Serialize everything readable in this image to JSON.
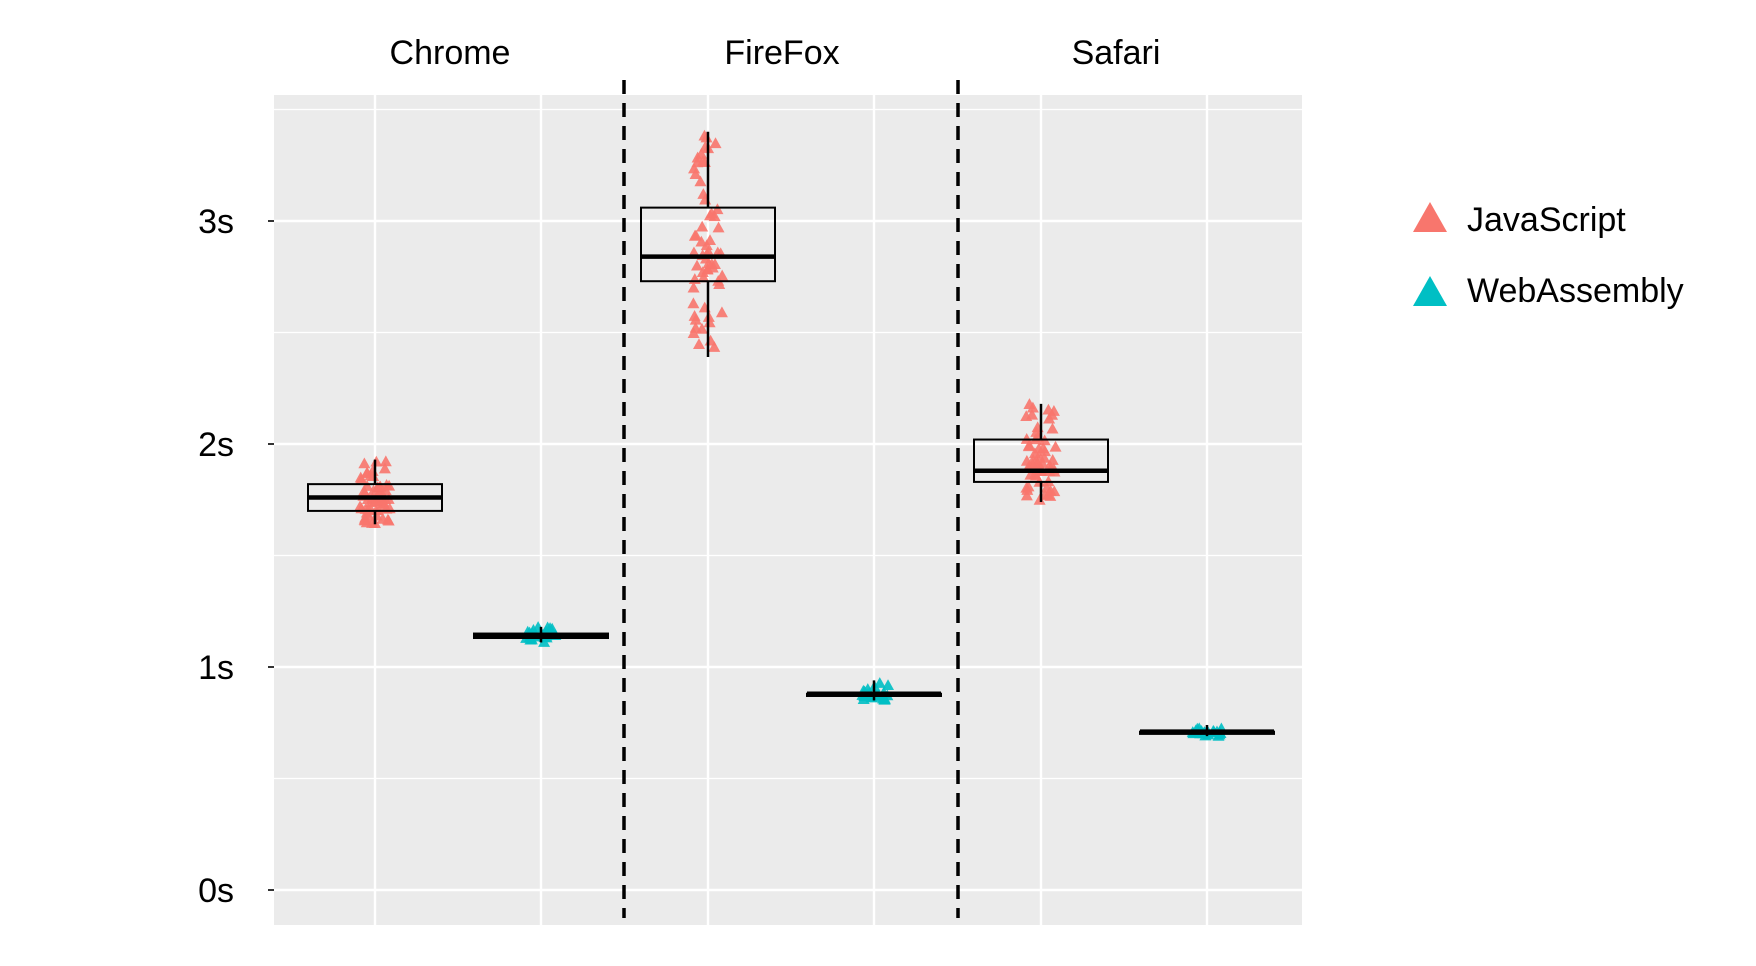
{
  "chart_data": {
    "type": "box",
    "panels": [
      {
        "label": "Chrome"
      },
      {
        "label": "FireFox"
      },
      {
        "label": "Safari"
      }
    ],
    "ylim": [
      0,
      3.5
    ],
    "y_ticks": [
      {
        "value": 0,
        "label": "0s"
      },
      {
        "value": 1,
        "label": "1s"
      },
      {
        "value": 2,
        "label": "2s"
      },
      {
        "value": 3,
        "label": "3s"
      }
    ],
    "grid": true,
    "legend_position": "right",
    "series": [
      {
        "name": "JavaScript",
        "color": "#F8766D",
        "marker": "triangle",
        "boxes": [
          {
            "panel": "Chrome",
            "q1": 1.7,
            "median": 1.76,
            "q3": 1.82,
            "whisker_low": 1.64,
            "whisker_high": 1.93
          },
          {
            "panel": "FireFox",
            "q1": 2.73,
            "median": 2.84,
            "q3": 3.06,
            "whisker_low": 2.39,
            "whisker_high": 3.4
          },
          {
            "panel": "Safari",
            "q1": 1.83,
            "median": 1.88,
            "q3": 2.02,
            "whisker_low": 1.74,
            "whisker_high": 2.18
          }
        ]
      },
      {
        "name": "WebAssembly",
        "color": "#00BFC4",
        "marker": "triangle",
        "boxes": [
          {
            "panel": "Chrome",
            "q1": 1.13,
            "median": 1.14,
            "q3": 1.15,
            "whisker_low": 1.11,
            "whisker_high": 1.18
          },
          {
            "panel": "FireFox",
            "q1": 0.87,
            "median": 0.88,
            "q3": 0.88,
            "whisker_low": 0.85,
            "whisker_high": 0.94
          },
          {
            "panel": "Safari",
            "q1": 0.7,
            "median": 0.71,
            "q3": 0.71,
            "whisker_low": 0.69,
            "whisker_high": 0.74
          }
        ]
      }
    ]
  }
}
